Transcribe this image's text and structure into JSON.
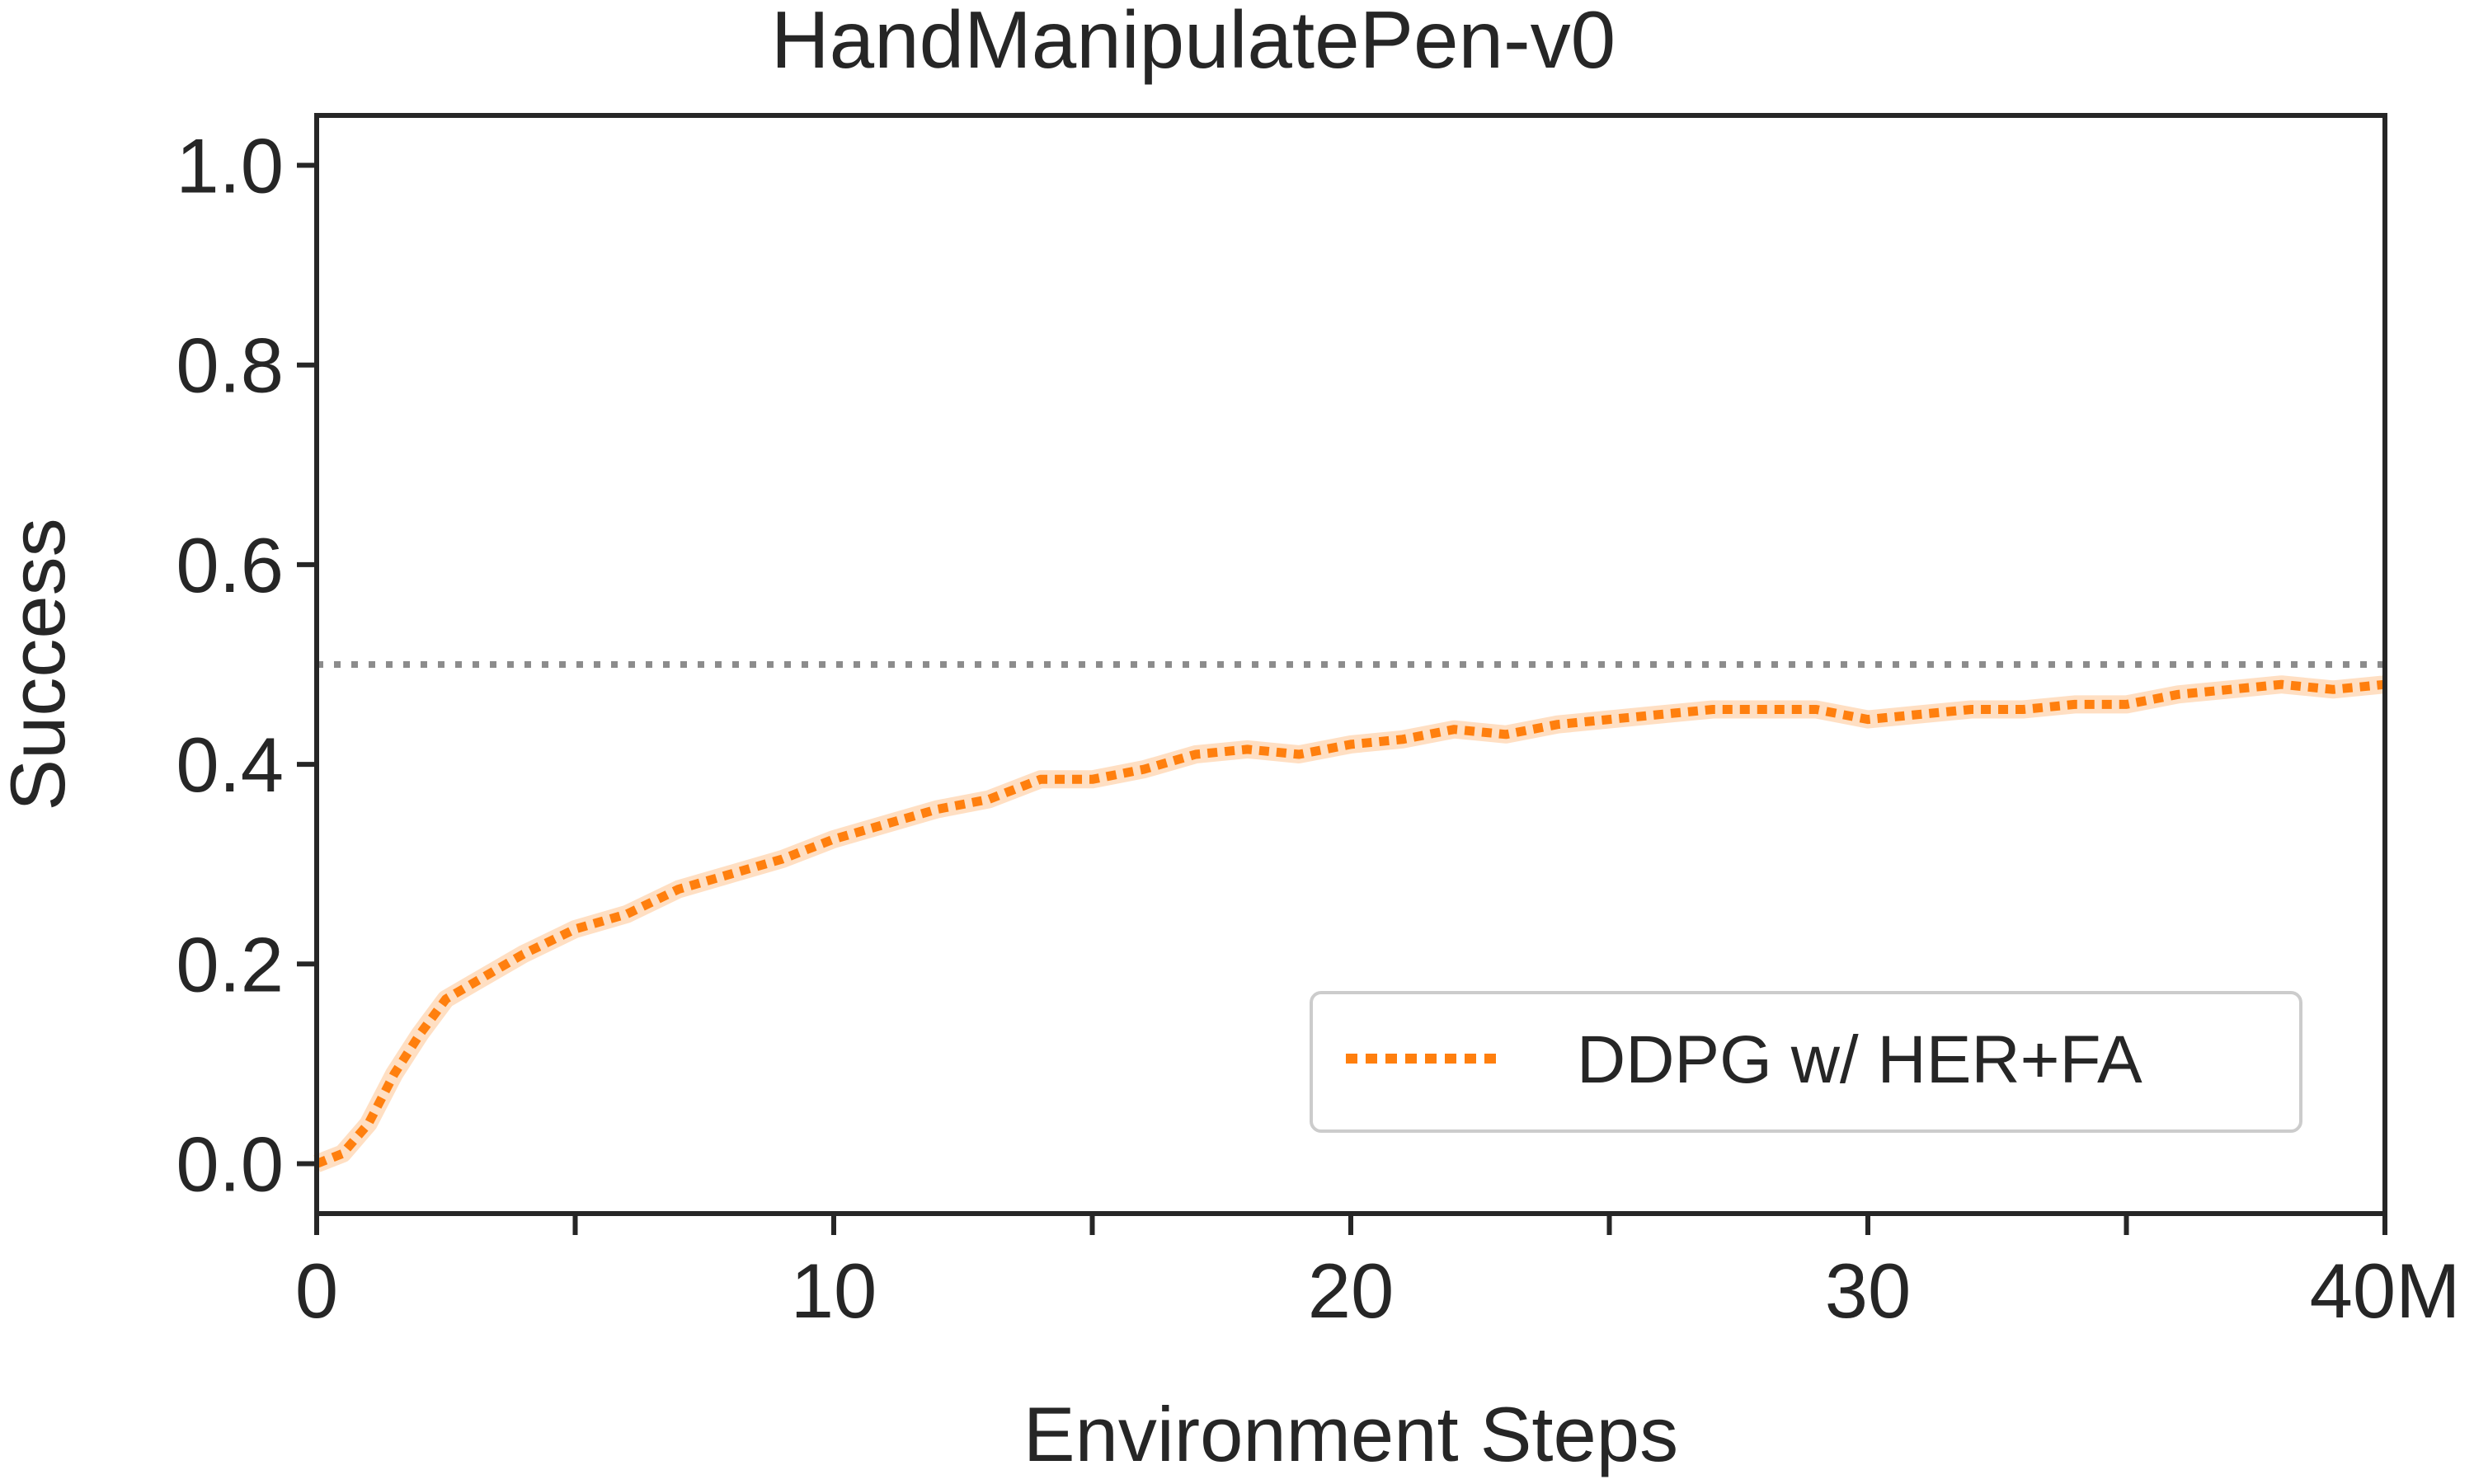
{
  "chart_data": {
    "type": "line",
    "title": "HandManipulatePen-v0",
    "xlabel": "Environment Steps",
    "ylabel": "Success",
    "xlim": [
      0,
      40
    ],
    "ylim": [
      -0.05,
      1.05
    ],
    "x_ticks": [
      0,
      10,
      20,
      30,
      40
    ],
    "x_tick_labels": [
      "0",
      "10",
      "20",
      "30",
      "40M"
    ],
    "x_minor_ticks": [
      5,
      15,
      25,
      35
    ],
    "y_ticks": [
      0.0,
      0.2,
      0.4,
      0.6,
      0.8,
      1.0
    ],
    "y_tick_labels": [
      "0.0",
      "0.2",
      "0.4",
      "0.6",
      "0.8",
      "1.0"
    ],
    "grid": false,
    "legend_position": "lower-right",
    "reference_line": {
      "y": 0.5,
      "style": "dotted",
      "color": "#8c8c8c"
    },
    "series": [
      {
        "name": "DDPG w/ HER+FA",
        "color": "#ff7f0e",
        "line_style": "dotted",
        "x": [
          0,
          0.5,
          1,
          1.5,
          2,
          2.5,
          3,
          4,
          5,
          6,
          7,
          8,
          9,
          10,
          11,
          12,
          13,
          14,
          15,
          16,
          17,
          18,
          19,
          20,
          21,
          22,
          23,
          24,
          25,
          26,
          27,
          28,
          29,
          30,
          31,
          32,
          33,
          34,
          35,
          36,
          37,
          38,
          39,
          40
        ],
        "y": [
          0.0,
          0.01,
          0.04,
          0.09,
          0.13,
          0.165,
          0.18,
          0.21,
          0.235,
          0.25,
          0.275,
          0.29,
          0.305,
          0.325,
          0.34,
          0.355,
          0.365,
          0.385,
          0.385,
          0.395,
          0.41,
          0.415,
          0.41,
          0.42,
          0.425,
          0.435,
          0.43,
          0.44,
          0.445,
          0.45,
          0.455,
          0.455,
          0.455,
          0.445,
          0.45,
          0.455,
          0.455,
          0.46,
          0.46,
          0.47,
          0.475,
          0.48,
          0.475,
          0.48
        ]
      }
    ]
  }
}
